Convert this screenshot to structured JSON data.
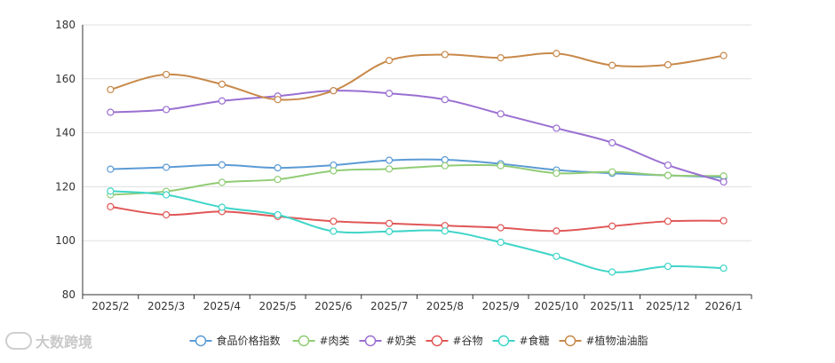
{
  "chart_data": {
    "type": "line",
    "categories": [
      "2025/2",
      "2025/3",
      "2025/4",
      "2025/5",
      "2025/6",
      "2025/7",
      "2025/8",
      "2025/9",
      "2025/10",
      "2025/11",
      "2025/12",
      "2026/1"
    ],
    "ylim": [
      80,
      180
    ],
    "yticks": [
      80,
      100,
      120,
      140,
      160,
      180
    ],
    "grid": true,
    "legend_position": "bottom",
    "series": [
      {
        "name": "食品价格指数",
        "color": "#5b9bd5",
        "values": [
          126.5,
          127.2,
          128.1,
          127.0,
          128.0,
          129.8,
          130.0,
          128.5,
          126.2,
          125.0,
          124.2,
          123.5
        ]
      },
      {
        "name": "#肉类",
        "color": "#91cc75",
        "values": [
          117.0,
          118.3,
          121.6,
          122.7,
          125.9,
          126.6,
          127.8,
          127.8,
          125.0,
          125.5,
          124.2,
          124.0
        ]
      },
      {
        "name": "#奶类",
        "color": "#9a6fd1",
        "values": [
          147.6,
          148.6,
          151.8,
          153.6,
          155.6,
          154.6,
          152.3,
          147.0,
          141.7,
          136.3,
          128.0,
          121.8
        ]
      },
      {
        "name": "#谷物",
        "color": "#e05757",
        "values": [
          112.6,
          109.6,
          110.8,
          109.0,
          107.2,
          106.4,
          105.6,
          104.8,
          103.6,
          105.4,
          107.2,
          107.4
        ]
      },
      {
        "name": "#食糖",
        "color": "#3fd5c8",
        "values": [
          118.4,
          117.0,
          112.4,
          109.6,
          103.5,
          103.4,
          103.6,
          99.4,
          94.2,
          88.4,
          90.5,
          89.8
        ]
      },
      {
        "name": "#植物油油脂",
        "color": "#c8894a",
        "values": [
          156.0,
          161.6,
          158.0,
          152.3,
          155.6,
          166.8,
          169.0,
          167.8,
          169.4,
          165.0,
          165.2,
          168.6
        ]
      }
    ]
  },
  "watermark": {
    "text": "大数跨境"
  }
}
